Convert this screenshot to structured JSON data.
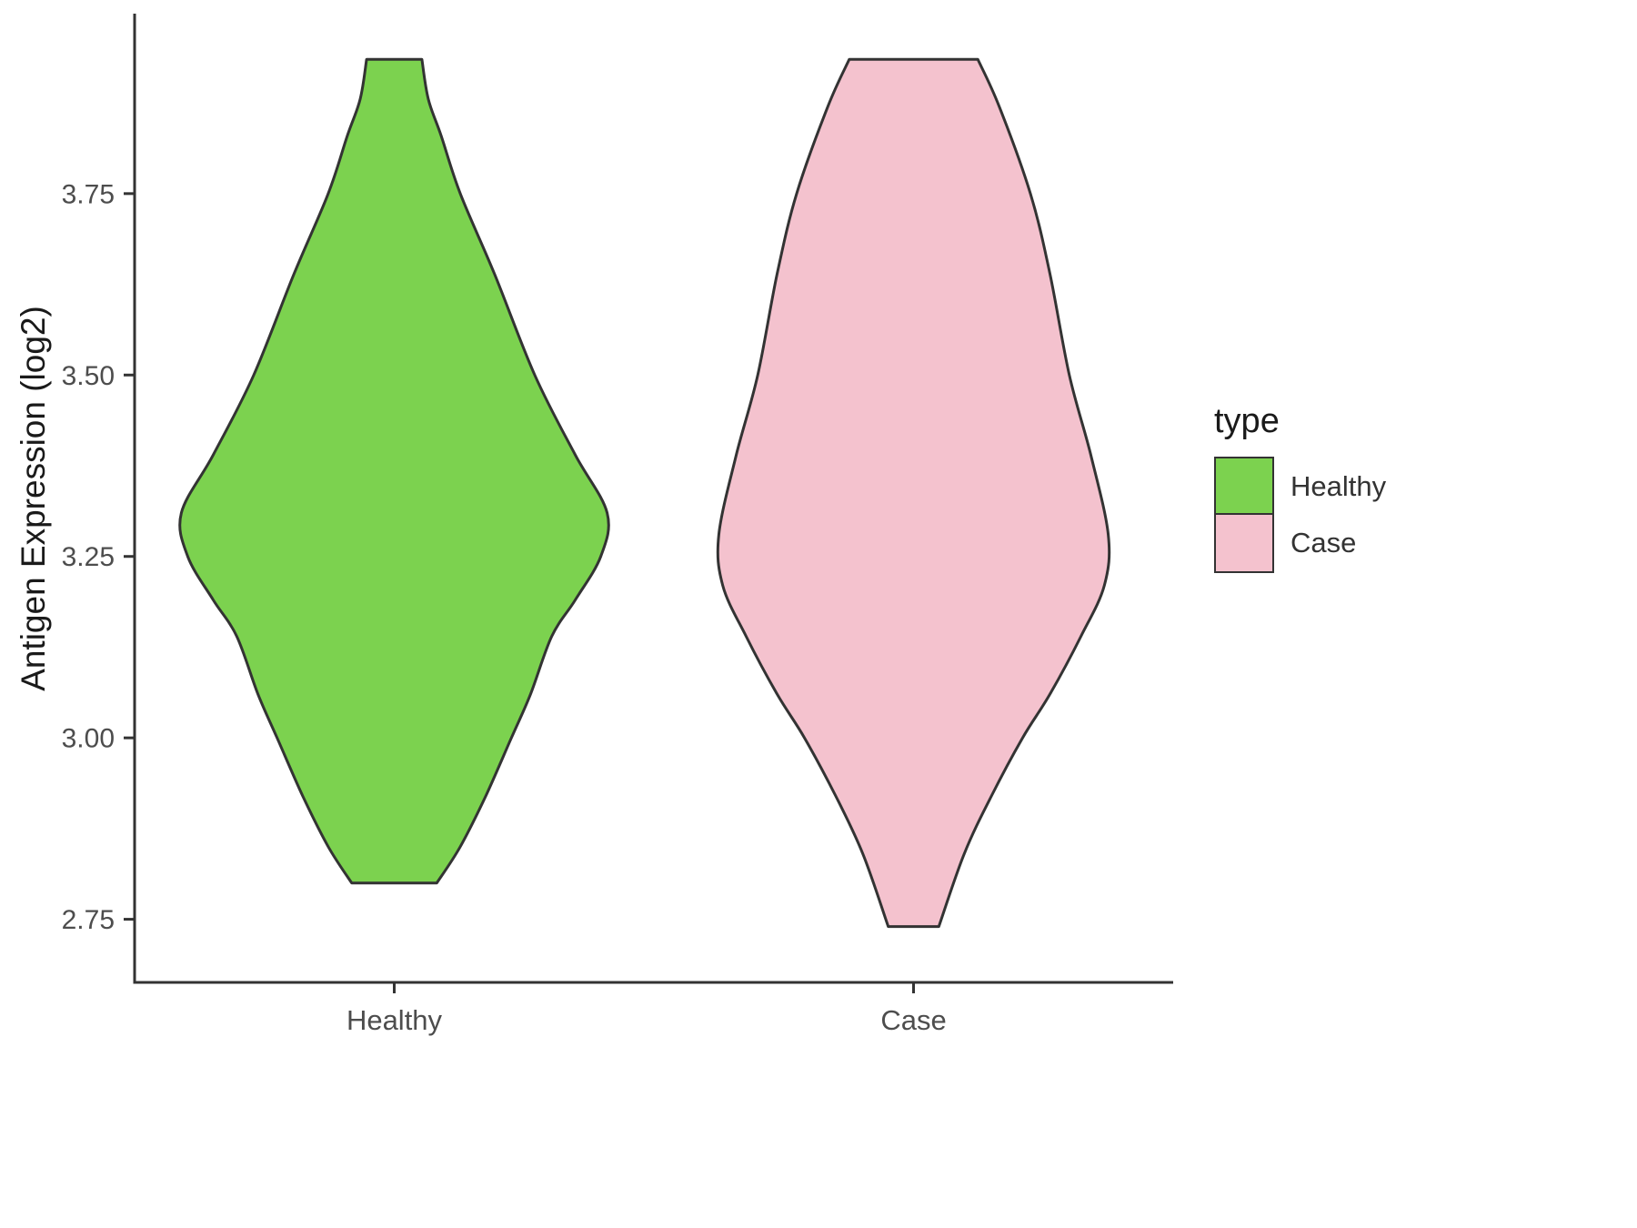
{
  "chart_data": {
    "type": "violin",
    "title": "",
    "xlabel": "",
    "ylabel": "Antigen Expression (log2)",
    "ylim": [
      2.663,
      3.998
    ],
    "yticks": [
      {
        "value": 3.75,
        "label": "3.75"
      },
      {
        "value": 3.5,
        "label": "3.50"
      },
      {
        "value": 3.25,
        "label": "3.25"
      },
      {
        "value": 3.0,
        "label": "3.00"
      },
      {
        "value": 2.75,
        "label": "2.75"
      }
    ],
    "categories": [
      "Healthy",
      "Case"
    ],
    "legend": {
      "title": "type",
      "entries": [
        {
          "label": "Healthy",
          "color": "#7CD24F"
        },
        {
          "label": "Case",
          "color": "#F4C2CE"
        }
      ]
    },
    "style": {
      "outline_color": "#333333",
      "axis_color": "#333333",
      "tick_text_color": "#4d4d4d",
      "title_text_color": "#1a1a1a"
    },
    "series": [
      {
        "name": "Healthy",
        "color": "#7CD24F",
        "max_width_frac": 0.82,
        "profile": [
          [
            3.935,
            0.13
          ],
          [
            3.88,
            0.16
          ],
          [
            3.83,
            0.22
          ],
          [
            3.75,
            0.31
          ],
          [
            3.64,
            0.47
          ],
          [
            3.5,
            0.66
          ],
          [
            3.39,
            0.85
          ],
          [
            3.31,
            1.0
          ],
          [
            3.25,
            0.97
          ],
          [
            3.19,
            0.85
          ],
          [
            3.14,
            0.74
          ],
          [
            3.06,
            0.64
          ],
          [
            3.0,
            0.55
          ],
          [
            2.92,
            0.43
          ],
          [
            2.85,
            0.31
          ],
          [
            2.8,
            0.2
          ]
        ]
      },
      {
        "name": "Case",
        "color": "#F4C2CE",
        "max_width_frac": 0.75,
        "profile": [
          [
            3.935,
            0.33
          ],
          [
            3.87,
            0.44
          ],
          [
            3.75,
            0.6
          ],
          [
            3.64,
            0.7
          ],
          [
            3.5,
            0.8
          ],
          [
            3.39,
            0.91
          ],
          [
            3.28,
            1.0
          ],
          [
            3.21,
            0.98
          ],
          [
            3.14,
            0.86
          ],
          [
            3.06,
            0.7
          ],
          [
            3.0,
            0.56
          ],
          [
            2.92,
            0.4
          ],
          [
            2.84,
            0.26
          ],
          [
            2.74,
            0.13
          ]
        ]
      }
    ]
  }
}
